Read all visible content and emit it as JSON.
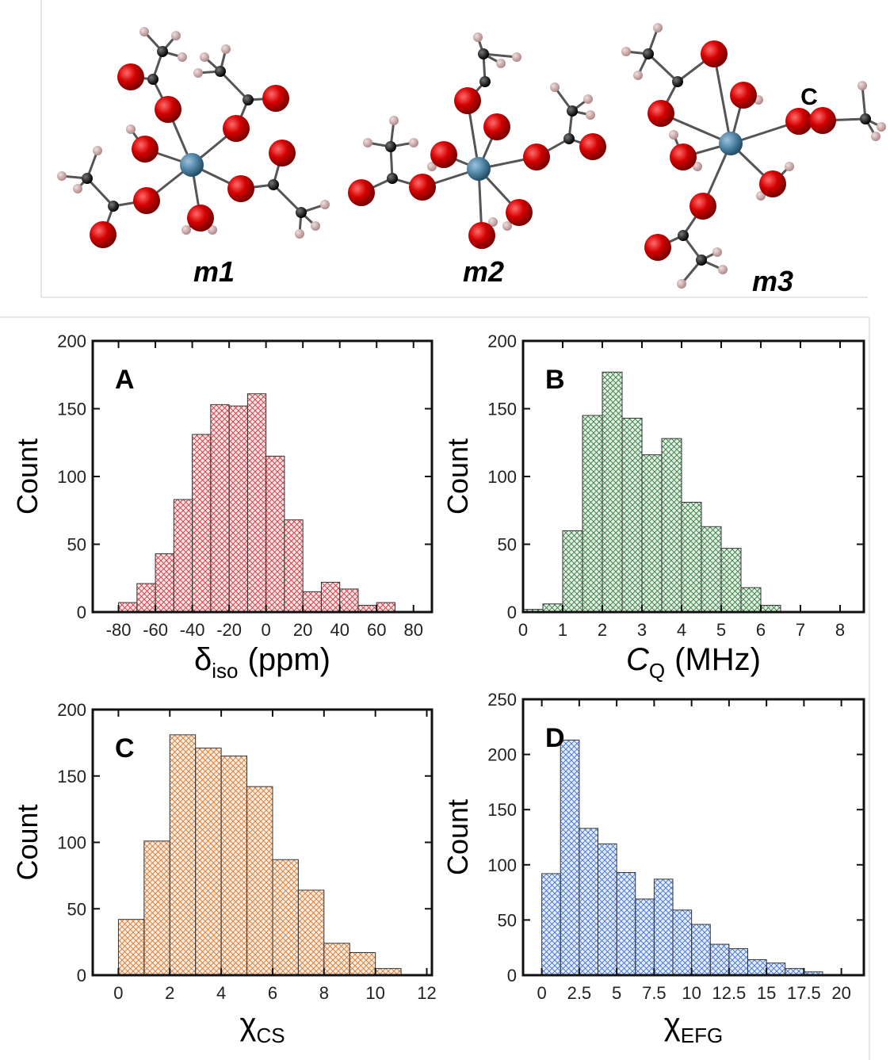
{
  "figure": {
    "structure_labels": [
      "m1",
      "m2",
      "m3"
    ],
    "annotation": "C"
  },
  "chart_data": [
    {
      "type": "histogram",
      "panel": "A",
      "ylabel": "Count",
      "xlabel": {
        "symbol": "δ",
        "sub": "iso",
        "unit": "(ppm)"
      },
      "bins": [
        -80,
        -70,
        -60,
        -50,
        -40,
        -30,
        -20,
        -10,
        0,
        10,
        20,
        30,
        40,
        50,
        60,
        70
      ],
      "values": [
        7,
        21,
        43,
        83,
        131,
        153,
        152,
        161,
        115,
        68,
        15,
        22,
        17,
        5,
        7
      ],
      "color": "#d0343c",
      "xlim": [
        -94,
        90
      ],
      "xticks": [
        -80,
        -60,
        -40,
        -20,
        0,
        20,
        40,
        60,
        80
      ],
      "ylim": [
        0,
        200
      ],
      "yticks": [
        0,
        50,
        100,
        150,
        200
      ]
    },
    {
      "type": "histogram",
      "panel": "B",
      "ylabel": "Count",
      "xlabel": {
        "symbol": "C",
        "sub": "Q",
        "unit": "(MHz)"
      },
      "bins": [
        0,
        0.5,
        1,
        1.5,
        2,
        2.5,
        3,
        3.5,
        4,
        4.5,
        5,
        5.5,
        6,
        6.5
      ],
      "values": [
        2,
        6,
        60,
        145,
        177,
        143,
        116,
        128,
        81,
        63,
        47,
        18,
        5
      ],
      "color": "#2e7d3a",
      "xlim": [
        0,
        8.6
      ],
      "xticks": [
        0,
        1,
        2,
        3,
        4,
        5,
        6,
        7,
        8
      ],
      "ylim": [
        0,
        200
      ],
      "yticks": [
        0,
        50,
        100,
        150,
        200
      ]
    },
    {
      "type": "histogram",
      "panel": "C",
      "ylabel": "Count",
      "xlabel": {
        "symbol": "χ",
        "sub": "CS"
      },
      "bins": [
        0,
        1,
        2,
        3,
        4,
        5,
        6,
        7,
        8,
        9,
        10,
        11
      ],
      "values": [
        42,
        101,
        181,
        171,
        165,
        142,
        87,
        64,
        24,
        17,
        5
      ],
      "color": "#d9762a",
      "xlim": [
        -1,
        12.2
      ],
      "xticks": [
        0,
        2,
        4,
        6,
        8,
        10,
        12
      ],
      "ylim": [
        0,
        200
      ],
      "yticks": [
        0,
        50,
        100,
        150,
        200
      ]
    },
    {
      "type": "histogram",
      "panel": "D",
      "ylabel": "Count",
      "xlabel": {
        "symbol": "χ",
        "sub": "EFG"
      },
      "bins": [
        0,
        1.25,
        2.5,
        3.75,
        5,
        6.25,
        7.5,
        8.75,
        10,
        11.25,
        12.5,
        13.75,
        15,
        16.25,
        17.5,
        18.75
      ],
      "values": [
        92,
        213,
        133,
        119,
        93,
        69,
        87,
        59,
        46,
        28,
        24,
        14,
        11,
        6,
        3
      ],
      "color": "#3b6fd6",
      "xlim": [
        -1.25,
        21.5
      ],
      "xticks": [
        0,
        2.5,
        5,
        7.5,
        10,
        12.5,
        15,
        17.5,
        20
      ],
      "ylim": [
        0,
        250
      ],
      "yticks": [
        0,
        50,
        100,
        150,
        200,
        250
      ]
    }
  ]
}
